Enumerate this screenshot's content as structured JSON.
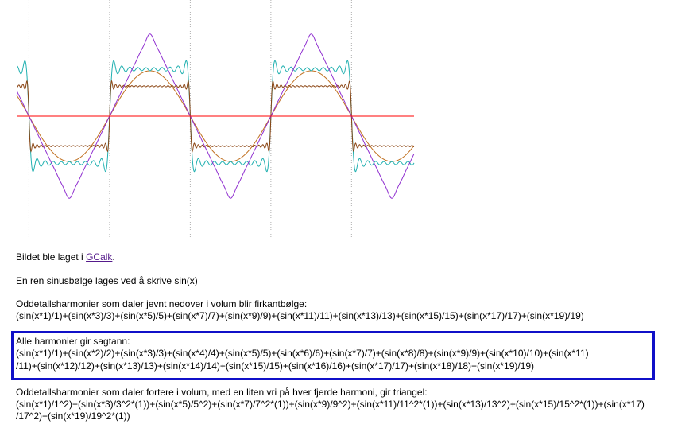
{
  "chart_data": {
    "type": "line",
    "x_range": [
      -3.62,
      11.86
    ],
    "y_range": [
      -1.85,
      1.85
    ],
    "grid": "vertical dotted lines at multiples of pi",
    "series": [
      {
        "kind": "sine",
        "color": "#c07020",
        "harmonics": "n=1",
        "amp": 1
      },
      {
        "kind": "square-19",
        "color": "#20b0b0",
        "harmonics": "odd n up to 19, 1/n",
        "amp": 1.32
      },
      {
        "kind": "square-39",
        "color": "#8b4513",
        "harmonics": "odd n up to 39, 1/n^2 mix",
        "amp": 0.84
      },
      {
        "kind": "triangle",
        "color": "#9030d0",
        "harmonics": "odd n up to 19, alternating 1/n^2",
        "amp": 1.18
      },
      {
        "kind": "axis",
        "color": "#ff0000"
      }
    ]
  },
  "text": {
    "credit_prefix": "Bildet ble laget i ",
    "credit_link": "GCalk",
    "credit_suffix": ".",
    "pure_sine": "En ren sinusbølge lages ved å skrive sin(x)",
    "square_heading": "Oddetallsharmonier som daler jevnt nedover i volum blir firkantbølge:",
    "square_formula": "(sin(x*1)/1)+(sin(x*3)/3)+(sin(x*5)/5)+(sin(x*7)/7)+(sin(x*9)/9)+(sin(x*11)/11)+(sin(x*13)/13)+(sin(x*15)/15)+(sin(x*17)/17)+(sin(x*19)/19)",
    "saw_heading": "Alle harmonier gir sagtann:",
    "saw_formula_1": "(sin(x*1)/1)+(sin(x*2)/2)+(sin(x*3)/3)+(sin(x*4)/4)+(sin(x*5)/5)+(sin(x*6)/6)+(sin(x*7)/7)+(sin(x*8)/8)+(sin(x*9)/9)+(sin(x*10)/10)+(sin(x*11)",
    "saw_formula_2": "/11)+(sin(x*12)/12)+(sin(x*13)/13)+(sin(x*14)/14)+(sin(x*15)/15)+(sin(x*16)/16)+(sin(x*17)/17)+(sin(x*18)/18)+(sin(x*19)/19)",
    "triangle_heading": "Oddetallsharmonier som daler fortere i volum, med en liten vri på hver fjerde harmoni, gir triangel:",
    "triangle_formula_1": "(sin(x*1)/1^2)+(sin(x*3)/3^2*(1))+(sin(x*5)/5^2)+(sin(x*7)/7^2*(1))+(sin(x*9)/9^2)+(sin(x*11)/11^2*(1))+(sin(x*13)/13^2)+(sin(x*15)/15^2*(1))+(sin(x*17)",
    "triangle_formula_2": "/17^2)+(sin(x*19)/19^2*(1))"
  }
}
